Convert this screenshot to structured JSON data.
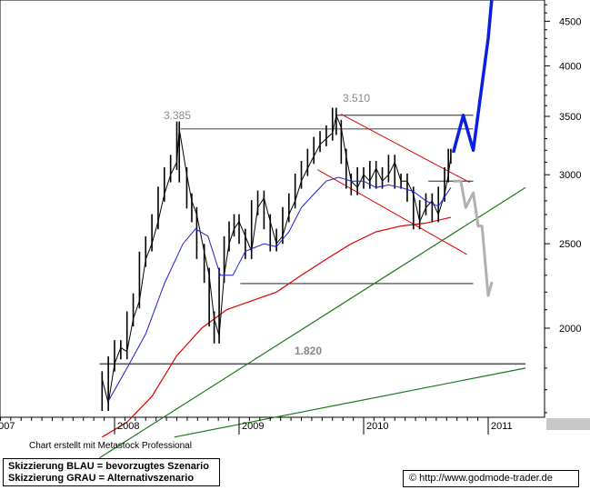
{
  "credit": "Chart erstellt mit Metastock Professional",
  "legend": {
    "blue": "Skizzierung BLAU = bevorzugtes Szenario",
    "gray": "Skizzierung GRAU = Alternativszenario"
  },
  "source": {
    "symbol": "©",
    "url": "http://www.godmode-trader.de"
  },
  "colors": {
    "price": "#000000",
    "ma_blue": "#1f1fd0",
    "ma_red": "#e00000",
    "trend_green": "#1a7a1a",
    "channel_red": "#e00000",
    "scenario_blue": "#0a1fe0",
    "scenario_gray": "#b0b0b0",
    "levels": "#000000"
  },
  "chart_data": {
    "type": "line",
    "y_scale": "log",
    "ylim": [
      1500,
      5200
    ],
    "yticks": [
      2000,
      2500,
      3000,
      3500,
      4000,
      4500
    ],
    "ytick_labels": [
      "2000",
      "2500",
      "3000",
      "3500",
      "4000",
      "4500"
    ],
    "x_tick_labels": [
      "2007",
      "2008",
      "2009",
      "2010",
      "2011"
    ],
    "annotations": [
      {
        "label": "3.385",
        "value": 3385
      },
      {
        "label": "3.510",
        "value": 3510
      },
      {
        "label": "1.820",
        "value": 1820
      }
    ],
    "price_approx": [
      [
        2007.9,
        1750
      ],
      [
        2007.95,
        1640
      ],
      [
        2008.0,
        1820
      ],
      [
        2008.05,
        1900
      ],
      [
        2008.1,
        1880
      ],
      [
        2008.15,
        2050
      ],
      [
        2008.2,
        2150
      ],
      [
        2008.25,
        2400
      ],
      [
        2008.3,
        2500
      ],
      [
        2008.35,
        2650
      ],
      [
        2008.4,
        2850
      ],
      [
        2008.45,
        3000
      ],
      [
        2008.5,
        3100
      ],
      [
        2008.52,
        3385
      ],
      [
        2008.58,
        3000
      ],
      [
        2008.62,
        2800
      ],
      [
        2008.66,
        2700
      ],
      [
        2008.72,
        2450
      ],
      [
        2008.76,
        2300
      ],
      [
        2008.8,
        2050
      ],
      [
        2008.84,
        1960
      ],
      [
        2008.88,
        2300
      ],
      [
        2008.92,
        2500
      ],
      [
        2008.96,
        2600
      ],
      [
        2009.0,
        2650
      ],
      [
        2009.05,
        2550
      ],
      [
        2009.1,
        2450
      ],
      [
        2009.15,
        2750
      ],
      [
        2009.2,
        2820
      ],
      [
        2009.25,
        2650
      ],
      [
        2009.3,
        2500
      ],
      [
        2009.35,
        2550
      ],
      [
        2009.4,
        2700
      ],
      [
        2009.45,
        2800
      ],
      [
        2009.5,
        2950
      ],
      [
        2009.55,
        3050
      ],
      [
        2009.6,
        3150
      ],
      [
        2009.65,
        3250
      ],
      [
        2009.7,
        3300
      ],
      [
        2009.75,
        3350
      ],
      [
        2009.78,
        3510
      ],
      [
        2009.82,
        3400
      ],
      [
        2009.86,
        3150
      ],
      [
        2009.9,
        2950
      ],
      [
        2009.95,
        2900
      ],
      [
        2010.0,
        3000
      ],
      [
        2010.05,
        2950
      ],
      [
        2010.1,
        3050
      ],
      [
        2010.15,
        2950
      ],
      [
        2010.2,
        3000
      ],
      [
        2010.25,
        3100
      ],
      [
        2010.3,
        2950
      ],
      [
        2010.35,
        2950
      ],
      [
        2010.4,
        2850
      ],
      [
        2010.45,
        2650
      ],
      [
        2010.5,
        2750
      ],
      [
        2010.55,
        2800
      ],
      [
        2010.6,
        2700
      ],
      [
        2010.65,
        2850
      ],
      [
        2010.68,
        3000
      ],
      [
        2010.7,
        3150
      ]
    ],
    "ma_blue_approx": [
      [
        2007.95,
        1650
      ],
      [
        2008.1,
        1800
      ],
      [
        2008.25,
        1970
      ],
      [
        2008.4,
        2250
      ],
      [
        2008.55,
        2500
      ],
      [
        2008.65,
        2600
      ],
      [
        2008.75,
        2550
      ],
      [
        2008.85,
        2300
      ],
      [
        2008.95,
        2300
      ],
      [
        2009.05,
        2450
      ],
      [
        2009.2,
        2500
      ],
      [
        2009.3,
        2480
      ],
      [
        2009.4,
        2580
      ],
      [
        2009.5,
        2750
      ],
      [
        2009.6,
        2850
      ],
      [
        2009.7,
        2950
      ],
      [
        2009.8,
        2980
      ],
      [
        2009.9,
        2950
      ],
      [
        2010.0,
        2950
      ],
      [
        2010.1,
        2900
      ],
      [
        2010.2,
        2920
      ],
      [
        2010.3,
        2900
      ],
      [
        2010.4,
        2870
      ],
      [
        2010.5,
        2800
      ],
      [
        2010.6,
        2760
      ],
      [
        2010.7,
        2900
      ]
    ],
    "ma_red_approx": [
      [
        2007.9,
        1500
      ],
      [
        2008.1,
        1560
      ],
      [
        2008.3,
        1670
      ],
      [
        2008.5,
        1860
      ],
      [
        2008.7,
        2000
      ],
      [
        2008.9,
        2100
      ],
      [
        2009.1,
        2150
      ],
      [
        2009.3,
        2200
      ],
      [
        2009.5,
        2300
      ],
      [
        2009.7,
        2400
      ],
      [
        2009.9,
        2500
      ],
      [
        2010.1,
        2580
      ],
      [
        2010.3,
        2620
      ],
      [
        2010.5,
        2640
      ],
      [
        2010.7,
        2680
      ]
    ],
    "levels": [
      {
        "value": 3385,
        "x_start": 2008.53,
        "x_end": 2010.88
      },
      {
        "value": 3510,
        "x_start": 2009.78,
        "x_end": 2010.88
      },
      {
        "value": 2950,
        "x_start": 2010.52,
        "x_end": 2010.88
      },
      {
        "value": 2250,
        "x_start": 2009.01,
        "x_end": 2010.88
      },
      {
        "value": 1820,
        "x_start": 2007.88,
        "x_end": 2011.3
      }
    ],
    "trendlines": [
      {
        "color": "trend_green",
        "points": [
          [
            2007.88,
            1420
          ],
          [
            2011.3,
            2900
          ]
        ]
      },
      {
        "color": "trend_green",
        "points": [
          [
            2008.48,
            1500
          ],
          [
            2011.3,
            1800
          ]
        ]
      },
      {
        "color": "channel_red",
        "points": [
          [
            2009.82,
            3520
          ],
          [
            2010.85,
            2940
          ]
        ]
      },
      {
        "color": "channel_red",
        "points": [
          [
            2009.63,
            3040
          ],
          [
            2010.83,
            2430
          ]
        ]
      }
    ],
    "scenario_blue": [
      [
        2010.72,
        3180
      ],
      [
        2010.8,
        3510
      ],
      [
        2010.88,
        3200
      ],
      [
        2011.0,
        4300
      ],
      [
        2011.05,
        5150
      ]
    ],
    "scenario_gray": [
      [
        2010.72,
        2950
      ],
      [
        2010.78,
        2950
      ],
      [
        2010.82,
        2750
      ],
      [
        2010.88,
        2860
      ],
      [
        2010.92,
        2620
      ],
      [
        2010.95,
        2620
      ],
      [
        2011.0,
        2180
      ],
      [
        2011.03,
        2260
      ]
    ]
  }
}
